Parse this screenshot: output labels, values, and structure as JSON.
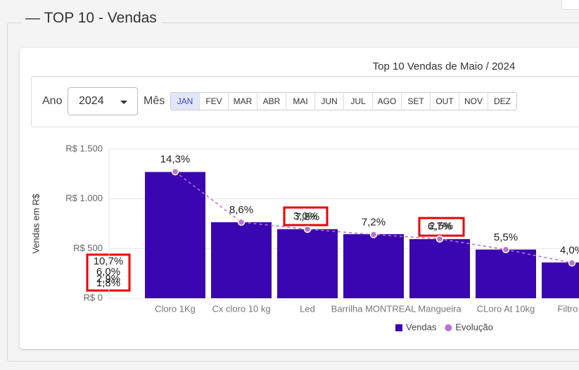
{
  "header": {
    "title": "TOP 10 - Vendas"
  },
  "filters": {
    "year_label": "Ano",
    "year": "2024",
    "month_label": "Mês",
    "months": [
      "JAN",
      "FEV",
      "MAR",
      "ABR",
      "MAI",
      "JUN",
      "JUL",
      "AGO",
      "SET",
      "OUT",
      "NOV",
      "DEZ"
    ]
  },
  "chart_data": {
    "type": "combo",
    "title": "Top 10 Vendas de Maio / 2024",
    "ylabel": "Vendas em R$",
    "categories": [
      "Cloro 1Kg",
      "Cx cloro 10 kg",
      "Led",
      "Barrilha MONTREAL",
      "Mangueira",
      "CLoro At 10kg",
      "Filtro S"
    ],
    "series": [
      {
        "name": "Vendas",
        "color": "#3a06b2",
        "values": [
          1270,
          765,
          695,
          645,
          595,
          490,
          360
        ]
      },
      {
        "name": "Evolução",
        "color": "#b873d6",
        "axis": "y2",
        "values": [
          14.3,
          8.6,
          7.8,
          7.2,
          6.7,
          5.5,
          4.0
        ],
        "value_labels": [
          "14,3%",
          "8,6%",
          "7,8%",
          "7,2%",
          "6,7%",
          "5,5%",
          "4,0%"
        ]
      }
    ],
    "ylim": [
      0,
      1500
    ],
    "yticks": [
      {
        "value": 0,
        "label": "R$ 0"
      },
      {
        "value": 500,
        "label": "R$ 500"
      },
      {
        "value": 1000,
        "label": "R$ 1.000"
      },
      {
        "value": 1500,
        "label": "R$ 1.500"
      }
    ],
    "y2lim": [
      0,
      16.85
    ],
    "annotations": [
      "10,7%",
      "6,0%",
      "2,9%",
      "1,8%",
      "3,0%",
      "2,5%"
    ],
    "grid": true,
    "legend": "bottom"
  }
}
